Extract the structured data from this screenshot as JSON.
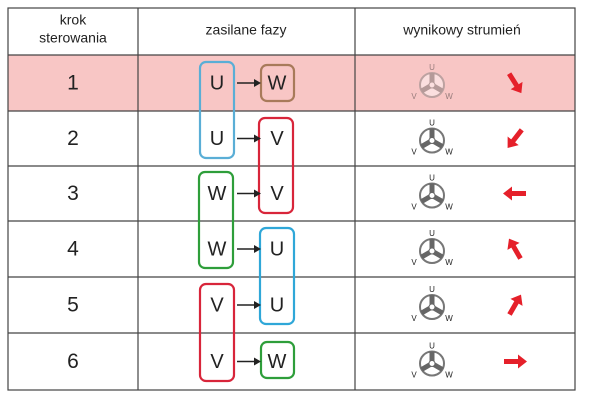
{
  "table": {
    "header": {
      "step_lines": [
        "krok",
        "sterowania"
      ],
      "phases": "zasilane fazy",
      "flux": "wynikowy strumień"
    },
    "rows": [
      {
        "step": "1",
        "from": "U",
        "to": "W"
      },
      {
        "step": "2",
        "from": "U",
        "to": "V"
      },
      {
        "step": "3",
        "from": "W",
        "to": "V"
      },
      {
        "step": "4",
        "from": "W",
        "to": "U"
      },
      {
        "step": "5",
        "from": "V",
        "to": "U"
      },
      {
        "step": "6",
        "from": "V",
        "to": "W"
      }
    ],
    "rotor_labels": [
      "U",
      "V",
      "W"
    ]
  }
}
